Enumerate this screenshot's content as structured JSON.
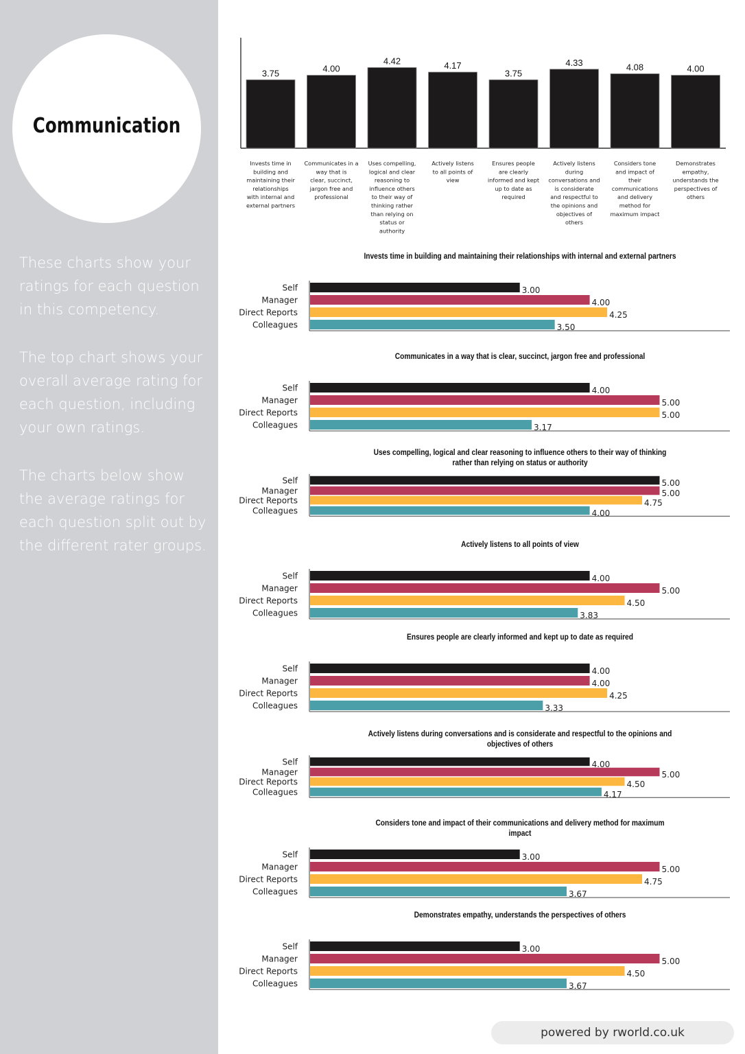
{
  "sidebar": {
    "title": "Communication",
    "paragraphs": [
      "These charts show your ratings for each question in this competency.",
      "The top chart shows your overall average rating for each question, including your own ratings.",
      "The charts below show the average ratings for each question split out by the different rater groups."
    ]
  },
  "footer": {
    "text": "powered by rworld.co.uk"
  },
  "colors": {
    "Self": "#1c1a1b",
    "Manager": "#b73a5b",
    "Direct Reports": "#fbb740",
    "Colleagues": "#4a9fa8"
  },
  "chart_data": [
    {
      "type": "bar",
      "title": "",
      "categories": [
        "Invests time in building and maintaining their relationships with internal and external partners",
        "Communicates in a way that is clear, succinct, jargon free and professional",
        "Uses compelling, logical and clear reasoning to influence others to their way of thinking rather than relying on status or authority",
        "Actively listens to all points of view",
        "Ensures people are clearly informed and kept up to date as required",
        "Actively listens during conversations and is considerate and respectful to the opinions and objectives of others",
        "Considers tone and impact of their communications and delivery method for maximum impact",
        "Demonstrates empathy, understands the perspectives of others"
      ],
      "values": [
        3.75,
        4.0,
        4.42,
        4.17,
        3.75,
        4.33,
        4.08,
        4.0
      ],
      "labels": [
        "3.75",
        "4.00",
        "4.42",
        "4.17",
        "3.75",
        "4.33",
        "4.08",
        "4.00"
      ],
      "ylim": [
        0,
        5
      ],
      "grid": false
    },
    {
      "type": "bar",
      "orientation": "horizontal",
      "title": "Invests time in building and maintaining their relationships with internal and external partners",
      "categories": [
        "Self",
        "Manager",
        "Direct Reports",
        "Colleagues"
      ],
      "values": [
        3.0,
        4.0,
        4.25,
        3.5
      ],
      "labels": [
        "3.00",
        "4.00",
        "4.25",
        "3.50"
      ],
      "xlim": [
        0,
        5
      ]
    },
    {
      "type": "bar",
      "orientation": "horizontal",
      "title": "Communicates in a way that is clear, succinct, jargon free and professional",
      "categories": [
        "Self",
        "Manager",
        "Direct Reports",
        "Colleagues"
      ],
      "values": [
        4.0,
        5.0,
        5.0,
        3.17
      ],
      "labels": [
        "4.00",
        "5.00",
        "5.00",
        "3.17"
      ],
      "xlim": [
        0,
        5
      ]
    },
    {
      "type": "bar",
      "orientation": "horizontal",
      "title": "Uses compelling, logical and clear reasoning to influence others to their way of thinking rather than relying on status or authority",
      "categories": [
        "Self",
        "Manager",
        "Direct Reports",
        "Colleagues"
      ],
      "values": [
        5.0,
        5.0,
        4.75,
        4.0
      ],
      "labels": [
        "5.00",
        "5.00",
        "4.75",
        "4.00"
      ],
      "xlim": [
        0,
        5
      ]
    },
    {
      "type": "bar",
      "orientation": "horizontal",
      "title": "Actively listens to all points of view",
      "categories": [
        "Self",
        "Manager",
        "Direct Reports",
        "Colleagues"
      ],
      "values": [
        4.0,
        5.0,
        4.5,
        3.83
      ],
      "labels": [
        "4.00",
        "5.00",
        "4.50",
        "3.83"
      ],
      "xlim": [
        0,
        5
      ]
    },
    {
      "type": "bar",
      "orientation": "horizontal",
      "title": "Ensures people are clearly informed and kept up to date as required",
      "categories": [
        "Self",
        "Manager",
        "Direct Reports",
        "Colleagues"
      ],
      "values": [
        4.0,
        4.0,
        4.25,
        3.33
      ],
      "labels": [
        "4.00",
        "4.00",
        "4.25",
        "3.33"
      ],
      "xlim": [
        0,
        5
      ]
    },
    {
      "type": "bar",
      "orientation": "horizontal",
      "title": "Actively listens during conversations and is considerate and respectful to the opinions and objectives of others",
      "categories": [
        "Self",
        "Manager",
        "Direct Reports",
        "Colleagues"
      ],
      "values": [
        4.0,
        5.0,
        4.5,
        4.17
      ],
      "labels": [
        "4.00",
        "5.00",
        "4.50",
        "4.17"
      ],
      "xlim": [
        0,
        5
      ]
    },
    {
      "type": "bar",
      "orientation": "horizontal",
      "title": "Considers tone and impact of their communications and delivery method for maximum impact",
      "categories": [
        "Self",
        "Manager",
        "Direct Reports",
        "Colleagues"
      ],
      "values": [
        3.0,
        5.0,
        4.75,
        3.67
      ],
      "labels": [
        "3.00",
        "5.00",
        "4.75",
        "3.67"
      ],
      "xlim": [
        0,
        5
      ]
    },
    {
      "type": "bar",
      "orientation": "horizontal",
      "title": "Demonstrates empathy, understands the perspectives of others",
      "categories": [
        "Self",
        "Manager",
        "Direct Reports",
        "Colleagues"
      ],
      "values": [
        3.0,
        5.0,
        4.5,
        3.67
      ],
      "labels": [
        "3.00",
        "5.00",
        "4.50",
        "3.67"
      ],
      "xlim": [
        0,
        5
      ]
    }
  ]
}
